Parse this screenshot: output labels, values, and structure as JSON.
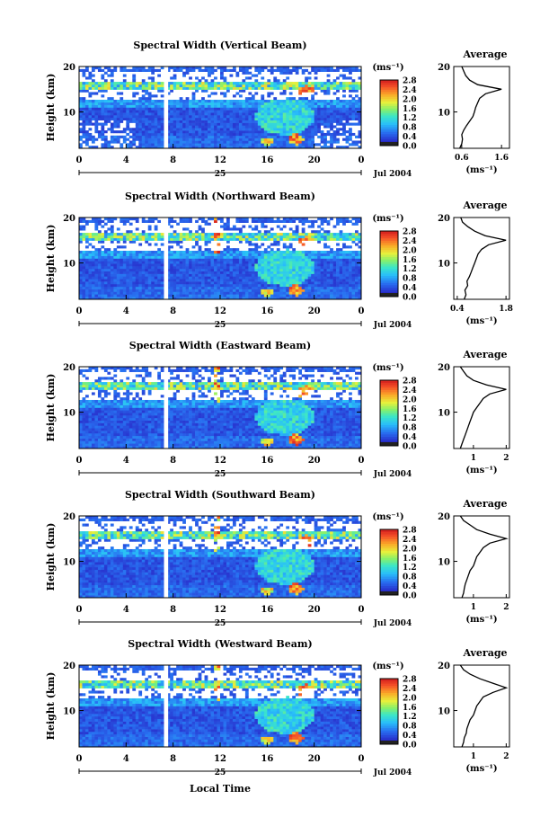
{
  "chart_data": [
    {
      "type": "heatmap",
      "title": "Spectral Width (Vertical Beam)",
      "ylabel": "Height (km)",
      "yticks": [
        "20",
        "10"
      ],
      "ylim": [
        2,
        20
      ],
      "xticks": [
        "0",
        "4",
        "8",
        "12",
        "16",
        "20",
        "0"
      ],
      "xlim": [
        0,
        24
      ],
      "date_day": "25",
      "date_label": "Jul 2004",
      "colorbar": {
        "unit": "(ms⁻¹)",
        "ticks": [
          "2.8",
          "2.4",
          "2.0",
          "1.6",
          "1.2",
          "0.8",
          "0.4",
          "0.0"
        ],
        "range": [
          0,
          2.8
        ]
      },
      "avg": {
        "title": "Average",
        "xticks": [
          "0.6",
          "1.6"
        ],
        "xlim": [
          0.4,
          1.8
        ],
        "yticks": [
          "20",
          "10"
        ],
        "xlabel": "(ms⁻¹)",
        "profile": [
          [
            2,
            0.55
          ],
          [
            3,
            0.6
          ],
          [
            4,
            0.62
          ],
          [
            5,
            0.6
          ],
          [
            6,
            0.65
          ],
          [
            7,
            0.72
          ],
          [
            8,
            0.8
          ],
          [
            9,
            0.88
          ],
          [
            10,
            0.92
          ],
          [
            11,
            0.95
          ],
          [
            12,
            1.0
          ],
          [
            13,
            1.05
          ],
          [
            14,
            1.2
          ],
          [
            15,
            1.6
          ],
          [
            16,
            1.0
          ],
          [
            17,
            0.8
          ],
          [
            18,
            0.7
          ],
          [
            19,
            0.65
          ],
          [
            20,
            0.6
          ]
        ]
      }
    },
    {
      "type": "heatmap",
      "title": "Spectral Width (Northward Beam)",
      "ylabel": "Height (km)",
      "yticks": [
        "20",
        "10"
      ],
      "ylim": [
        2,
        20
      ],
      "xticks": [
        "0",
        "4",
        "8",
        "12",
        "16",
        "20",
        "0"
      ],
      "xlim": [
        0,
        24
      ],
      "date_day": "25",
      "date_label": "Jul 2004",
      "colorbar": {
        "unit": "(ms⁻¹)",
        "ticks": [
          "2.8",
          "2.4",
          "2.0",
          "1.6",
          "1.2",
          "0.8",
          "0.4",
          "0.0"
        ],
        "range": [
          0,
          2.8
        ]
      },
      "avg": {
        "title": "Average",
        "xticks": [
          "0.4",
          "1.8"
        ],
        "xlim": [
          0.3,
          1.9
        ],
        "yticks": [
          "20",
          "10"
        ],
        "xlabel": "(ms⁻¹)",
        "profile": [
          [
            2,
            0.6
          ],
          [
            3,
            0.65
          ],
          [
            4,
            0.62
          ],
          [
            5,
            0.7
          ],
          [
            6,
            0.68
          ],
          [
            7,
            0.75
          ],
          [
            8,
            0.8
          ],
          [
            9,
            0.85
          ],
          [
            10,
            0.9
          ],
          [
            11,
            0.95
          ],
          [
            12,
            1.0
          ],
          [
            13,
            1.1
          ],
          [
            14,
            1.3
          ],
          [
            15,
            1.8
          ],
          [
            16,
            1.2
          ],
          [
            17,
            0.9
          ],
          [
            18,
            0.7
          ],
          [
            19,
            0.55
          ],
          [
            20,
            0.5
          ]
        ]
      }
    },
    {
      "type": "heatmap",
      "title": "Spectral Width (Eastward Beam)",
      "ylabel": "Height (km)",
      "yticks": [
        "20",
        "10"
      ],
      "ylim": [
        2,
        20
      ],
      "xticks": [
        "0",
        "4",
        "8",
        "12",
        "16",
        "20",
        "0"
      ],
      "xlim": [
        0,
        24
      ],
      "date_day": "25",
      "date_label": "Jul 2004",
      "colorbar": {
        "unit": "(ms⁻¹)",
        "ticks": [
          "2.8",
          "2.4",
          "2.0",
          "1.6",
          "1.2",
          "0.8",
          "0.4",
          "0.0"
        ],
        "range": [
          0,
          2.8
        ]
      },
      "avg": {
        "title": "Average",
        "xticks": [
          "1",
          "2"
        ],
        "xlim": [
          0.4,
          2.1
        ],
        "yticks": [
          "20",
          "10"
        ],
        "xlabel": "(ms⁻¹)",
        "profile": [
          [
            2,
            0.6
          ],
          [
            3,
            0.65
          ],
          [
            4,
            0.7
          ],
          [
            5,
            0.75
          ],
          [
            6,
            0.8
          ],
          [
            7,
            0.85
          ],
          [
            8,
            0.9
          ],
          [
            9,
            0.95
          ],
          [
            10,
            1.0
          ],
          [
            11,
            1.1
          ],
          [
            12,
            1.2
          ],
          [
            13,
            1.3
          ],
          [
            14,
            1.5
          ],
          [
            15,
            2.0
          ],
          [
            16,
            1.4
          ],
          [
            17,
            1.0
          ],
          [
            18,
            0.8
          ],
          [
            19,
            0.7
          ],
          [
            20,
            0.6
          ]
        ]
      }
    },
    {
      "type": "heatmap",
      "title": "Spectral Width (Southward Beam)",
      "ylabel": "Height (km)",
      "yticks": [
        "20",
        "10"
      ],
      "ylim": [
        2,
        20
      ],
      "xticks": [
        "0",
        "4",
        "8",
        "12",
        "16",
        "20",
        "0"
      ],
      "xlim": [
        0,
        24
      ],
      "date_day": "25",
      "date_label": "Jul 2004",
      "colorbar": {
        "unit": "(ms⁻¹)",
        "ticks": [
          "2.8",
          "2.4",
          "2.0",
          "1.6",
          "1.2",
          "0.8",
          "0.4",
          "0.0"
        ],
        "range": [
          0,
          2.8
        ]
      },
      "avg": {
        "title": "Average",
        "xticks": [
          "1",
          "2"
        ],
        "xlim": [
          0.4,
          2.1
        ],
        "yticks": [
          "20",
          "10"
        ],
        "xlabel": "(ms⁻¹)",
        "profile": [
          [
            2,
            0.65
          ],
          [
            3,
            0.7
          ],
          [
            4,
            0.72
          ],
          [
            5,
            0.75
          ],
          [
            6,
            0.8
          ],
          [
            7,
            0.85
          ],
          [
            8,
            0.9
          ],
          [
            9,
            1.0
          ],
          [
            10,
            1.05
          ],
          [
            11,
            1.1
          ],
          [
            12,
            1.2
          ],
          [
            13,
            1.3
          ],
          [
            14,
            1.5
          ],
          [
            15,
            2.0
          ],
          [
            16,
            1.5
          ],
          [
            17,
            1.1
          ],
          [
            18,
            0.9
          ],
          [
            19,
            0.7
          ],
          [
            20,
            0.6
          ]
        ]
      }
    },
    {
      "type": "heatmap",
      "title": "Spectral Width (Westward Beam)",
      "ylabel": "Height (km)",
      "yticks": [
        "20",
        "10"
      ],
      "ylim": [
        2,
        20
      ],
      "xticks": [
        "0",
        "4",
        "8",
        "12",
        "16",
        "20",
        "0"
      ],
      "xlim": [
        0,
        24
      ],
      "date_day": "25",
      "date_label": "Jul 2004",
      "xlabel": "Local Time",
      "colorbar": {
        "unit": "(ms⁻¹)",
        "ticks": [
          "2.8",
          "2.4",
          "2.0",
          "1.6",
          "1.2",
          "0.8",
          "0.4",
          "0.0"
        ],
        "range": [
          0,
          2.8
        ]
      },
      "avg": {
        "title": "Average",
        "xticks": [
          "1",
          "2"
        ],
        "xlim": [
          0.4,
          2.1
        ],
        "yticks": [
          "20",
          "10"
        ],
        "xlabel": "(ms⁻¹)",
        "profile": [
          [
            2,
            0.65
          ],
          [
            3,
            0.7
          ],
          [
            4,
            0.72
          ],
          [
            5,
            0.78
          ],
          [
            6,
            0.8
          ],
          [
            7,
            0.85
          ],
          [
            8,
            0.9
          ],
          [
            9,
            1.0
          ],
          [
            10,
            1.05
          ],
          [
            11,
            1.1
          ],
          [
            12,
            1.2
          ],
          [
            13,
            1.3
          ],
          [
            14,
            1.6
          ],
          [
            15,
            2.0
          ],
          [
            16,
            1.6
          ],
          [
            17,
            1.2
          ],
          [
            18,
            0.9
          ],
          [
            19,
            0.7
          ],
          [
            20,
            0.6
          ]
        ]
      }
    }
  ]
}
